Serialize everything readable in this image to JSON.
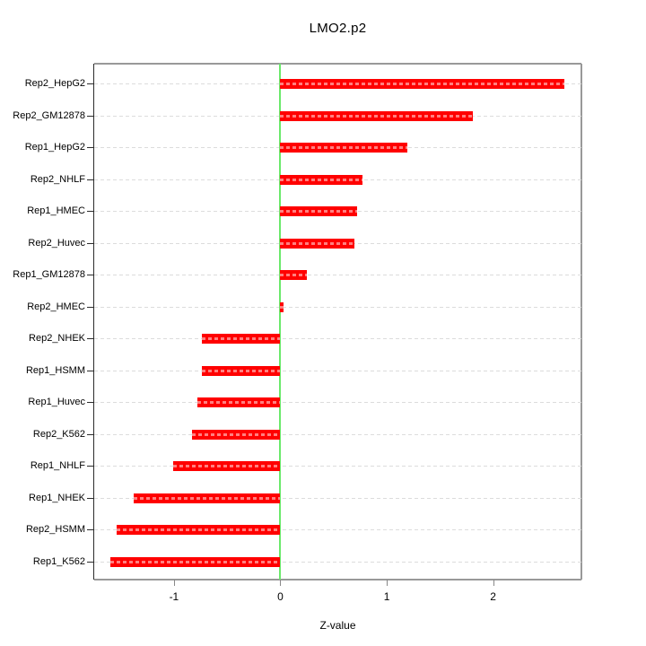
{
  "chart_data": {
    "type": "bar",
    "orientation": "horizontal",
    "title": "LMO2.p2",
    "xlabel": "Z-value",
    "ylabel": "",
    "categories": [
      "Rep2_HepG2",
      "Rep2_GM12878",
      "Rep1_HepG2",
      "Rep2_NHLF",
      "Rep1_HMEC",
      "Rep2_Huvec",
      "Rep1_GM12878",
      "Rep2_HMEC",
      "Rep2_NHEK",
      "Rep1_HSMM",
      "Rep1_Huvec",
      "Rep2_K562",
      "Rep1_NHLF",
      "Rep1_NHEK",
      "Rep2_HSMM",
      "Rep1_K562"
    ],
    "values": [
      2.67,
      1.81,
      1.19,
      0.77,
      0.72,
      0.7,
      0.25,
      0.03,
      -0.74,
      -0.74,
      -0.78,
      -0.83,
      -1.01,
      -1.38,
      -1.54,
      -1.6
    ],
    "x_ticks": [
      -1,
      0,
      1,
      2
    ],
    "xlim": [
      -1.75,
      2.83
    ],
    "grid": true,
    "grid_style": "dashed",
    "zero_line": true,
    "legend": "none",
    "colors": {
      "bar": "#FF0000",
      "bar_hatch": "rgba(255,255,255,0.5)",
      "zero_line": "#6BE96B",
      "grid": "#DCDCDC",
      "box": "#999999",
      "y_axis": "#2B2B2B",
      "x_tick": "#888888",
      "text": "#000000"
    }
  }
}
